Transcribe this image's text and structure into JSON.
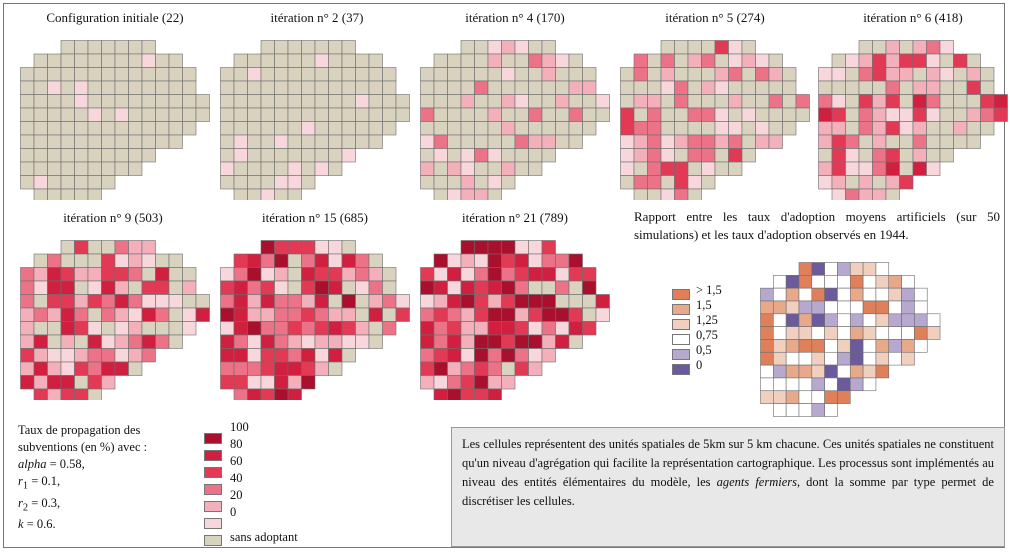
{
  "colors": {
    "sans_adoptant": "#d9d2bf",
    "c0": "#f7d6dc",
    "c20": "#f3b0bb",
    "c40": "#ec7387",
    "c60": "#e23a55",
    "c80": "#d11f3f",
    "c100": "#a8102d",
    "r_gt15": "#e0805a",
    "r_15": "#e8a98a",
    "r_125": "#f0cfbf",
    "r_075": "#ffffff",
    "r_05": "#b7a8cf",
    "r_0": "#6d5a9c",
    "grid": "#6d6d6d"
  },
  "maps": [
    {
      "title": "Configuration initiale (22)",
      "seed": 3,
      "intensity": 0.05
    },
    {
      "title": "itération n° 2 (37)",
      "seed": 7,
      "intensity": 0.09
    },
    {
      "title": "itération n° 4 (170)",
      "seed": 11,
      "intensity": 0.33
    },
    {
      "title": "itération n° 5 (274)",
      "seed": 13,
      "intensity": 0.48
    },
    {
      "title": "itération n° 6 (418)",
      "seed": 17,
      "intensity": 0.62
    },
    {
      "title": "itération n° 9 (503)",
      "seed": 19,
      "intensity": 0.76
    },
    {
      "title": "itération n° 15 (685)",
      "seed": 23,
      "intensity": 0.86
    },
    {
      "title": "itération n° 21 (789)",
      "seed": 29,
      "intensity": 0.94
    }
  ],
  "propagation_legend": {
    "line1": "Taux de propagation des",
    "line2": "subventions (en %) avec :",
    "alpha_sym": "alpha",
    "alpha_val": " = 0.58,",
    "r1_sym": "r",
    "r1_sub": "1",
    "r1_val": " = 0.1,",
    "r2_sym": "r",
    "r2_sub": "2",
    "r2_val": " = 0.3,",
    "k_sym": "k",
    "k_val": " = 0.6.",
    "classes": [
      "100",
      "80",
      "60",
      "40",
      "20",
      "0",
      "sans adoptant"
    ]
  },
  "ratio_map": {
    "title": "Rapport entre les taux d'adoption moyens artificiels (sur 50 simulations) et les taux d'adoption observés en 1944.",
    "classes": [
      "> 1,5",
      "1,5",
      "1,25",
      "0,75",
      "0,5",
      "0"
    ]
  },
  "note": {
    "text1": "Les cellules représentent des unités spatiales de 5km sur 5 km chacune. Ces unités spatiales ne constituent qu'un niveau d'agrégation qui facilite la représentation cartographique. Les processus sont implémentés au niveau des entités élémentaires du modèle, les ",
    "italic": "agents fermiers",
    "text2": ", dont la somme par type permet de discrétiser les cellules."
  }
}
